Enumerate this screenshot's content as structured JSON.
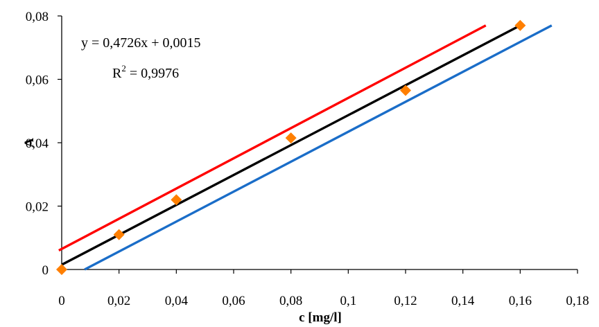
{
  "chart_data": {
    "type": "scatter",
    "xlabel": "c [mg/l]",
    "ylabel": "A",
    "xlim": [
      0,
      0.18
    ],
    "ylim": [
      0,
      0.08
    ],
    "x_ticks": [
      0,
      0.02,
      0.04,
      0.06,
      0.08,
      0.1,
      0.12,
      0.14,
      0.16,
      0.18
    ],
    "x_tick_labels": [
      "0",
      "0,02",
      "0,04",
      "0,06",
      "0,08",
      "0,1",
      "0,12",
      "0,14",
      "0,16",
      "0,18"
    ],
    "y_ticks": [
      0,
      0.02,
      0.04,
      0.06,
      0.08
    ],
    "y_tick_labels": [
      "0",
      "0,02",
      "0,04",
      "0,06",
      "0,08"
    ],
    "grid": false,
    "legend": "none",
    "annotations": {
      "equation": "y = 0,4726x + 0,0015",
      "r2_base": "R",
      "r2_sup": "2",
      "r2_value": " = 0,9976"
    },
    "series": [
      {
        "kind": "points",
        "marker": "diamond",
        "color": "#ff7f00",
        "x": [
          0,
          0.02,
          0.04,
          0.08,
          0.12,
          0.16
        ],
        "y": [
          0,
          0.011,
          0.022,
          0.0415,
          0.0565,
          0.077
        ]
      },
      {
        "kind": "line",
        "color": "#000000",
        "x": [
          0,
          0.16
        ],
        "y": [
          0.0015,
          0.077
        ]
      },
      {
        "kind": "line",
        "color": "#ff0000",
        "x": [
          -0.001,
          0.148
        ],
        "y": [
          0.006,
          0.077
        ]
      },
      {
        "kind": "line",
        "color": "#1a6dc8",
        "x": [
          0.008,
          0.171
        ],
        "y": [
          0,
          0.077
        ]
      }
    ]
  }
}
